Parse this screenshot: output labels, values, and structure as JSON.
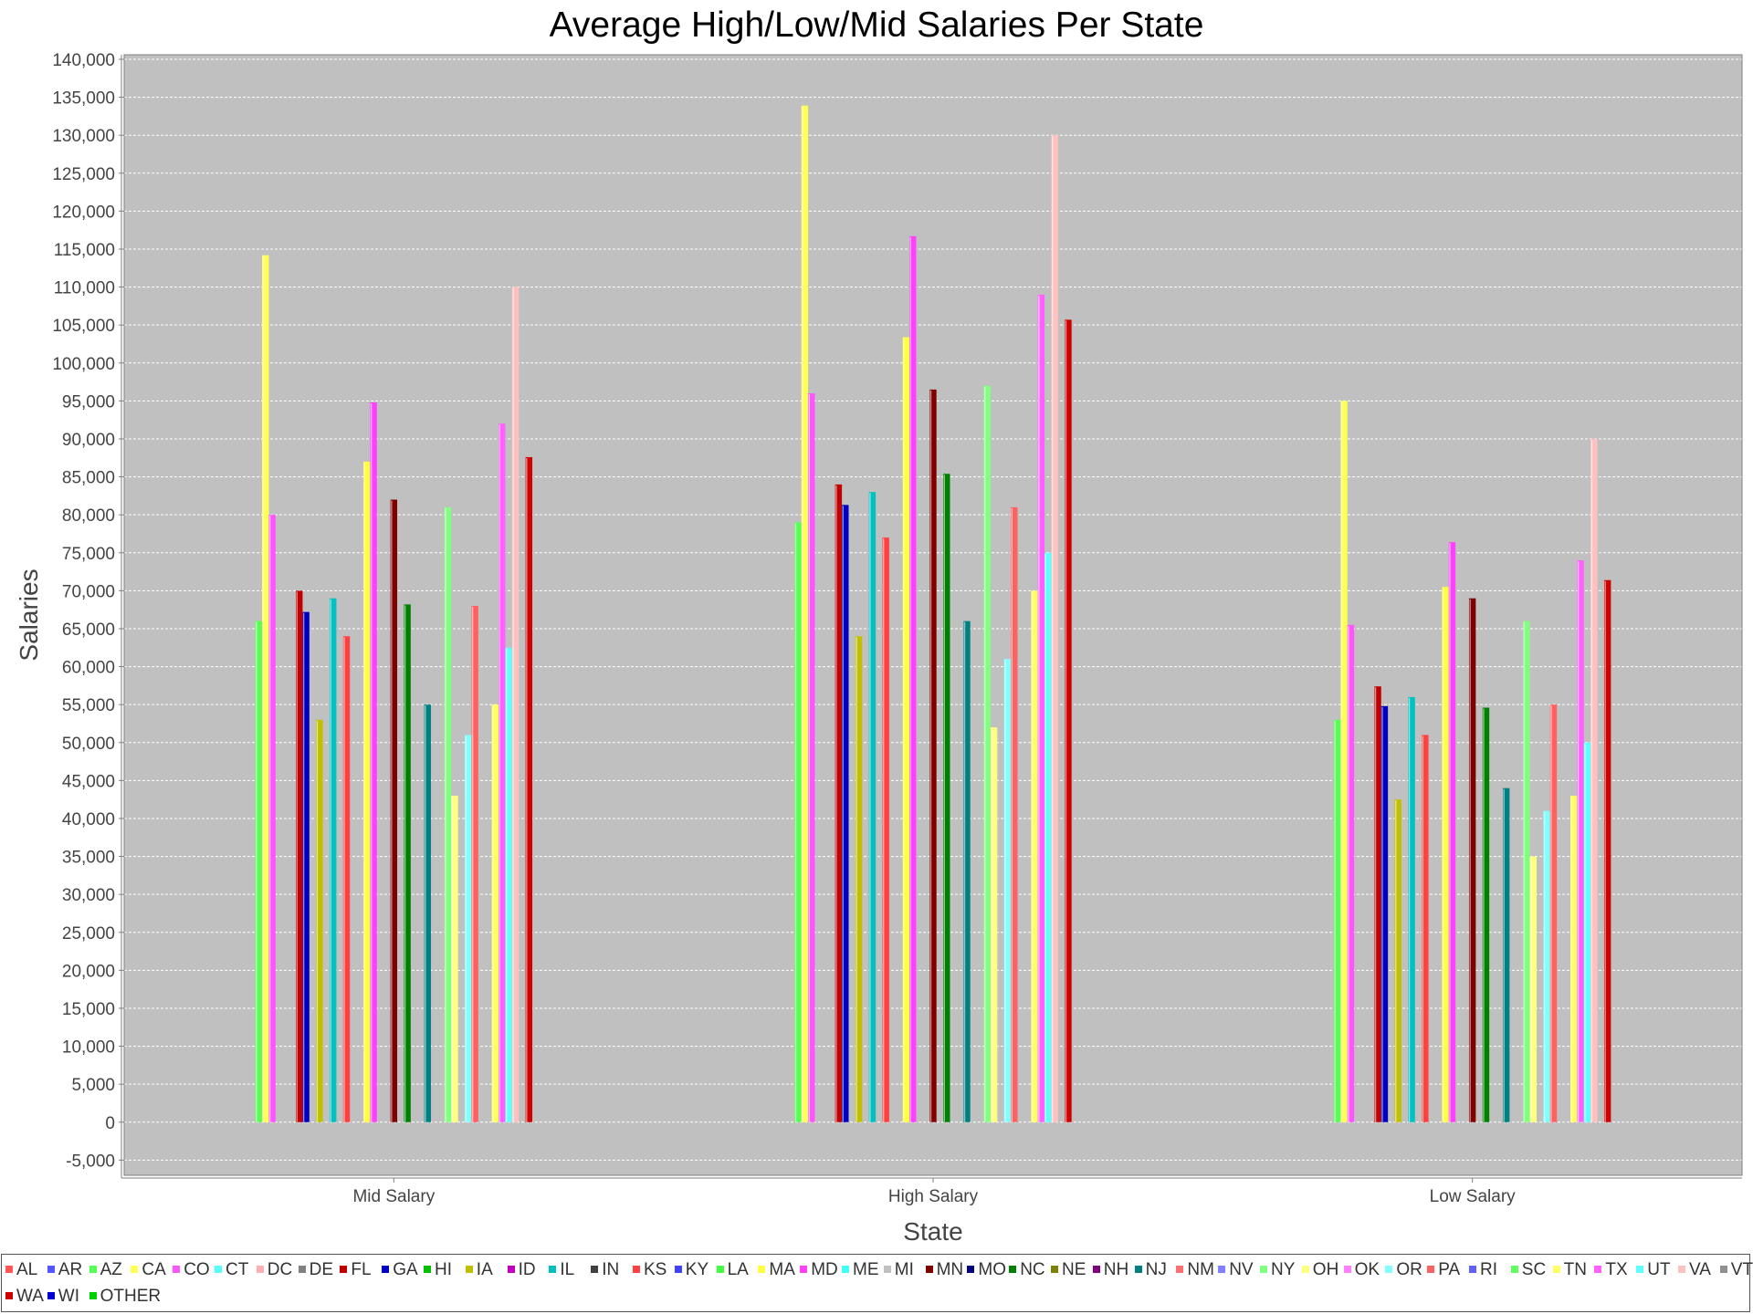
{
  "chart_data": {
    "type": "bar",
    "title": "Average High/Low/Mid Salaries Per State",
    "xlabel": "State",
    "ylabel": "Salaries",
    "ylim": [
      -7000,
      140600
    ],
    "yticks": [
      -5000,
      0,
      5000,
      10000,
      15000,
      20000,
      25000,
      30000,
      35000,
      40000,
      45000,
      50000,
      55000,
      60000,
      65000,
      70000,
      75000,
      80000,
      85000,
      90000,
      95000,
      100000,
      105000,
      110000,
      115000,
      120000,
      125000,
      130000,
      135000,
      140000
    ],
    "ytick_labels": [
      "-5,000",
      "0",
      "5,000",
      "10,000",
      "15,000",
      "20,000",
      "25,000",
      "30,000",
      "35,000",
      "40,000",
      "45,000",
      "50,000",
      "55,000",
      "60,000",
      "65,000",
      "70,000",
      "75,000",
      "80,000",
      "85,000",
      "90,000",
      "95,000",
      "100,000",
      "105,000",
      "110,000",
      "115,000",
      "120,000",
      "125,000",
      "130,000",
      "135,000",
      "140,000"
    ],
    "categories": [
      "Mid Salary",
      "High Salary",
      "Low Salary"
    ],
    "grid": true,
    "legend_position": "bottom",
    "series": [
      {
        "name": "AL",
        "color": "#ff5555",
        "values": [
          null,
          null,
          null
        ]
      },
      {
        "name": "AR",
        "color": "#5555ff",
        "values": [
          null,
          null,
          null
        ]
      },
      {
        "name": "AZ",
        "color": "#55ff55",
        "values": [
          66000,
          79000,
          53000
        ]
      },
      {
        "name": "CA",
        "color": "#ffff55",
        "values": [
          114200,
          133900,
          95000
        ]
      },
      {
        "name": "CO",
        "color": "#ff55ff",
        "values": [
          80000,
          96000,
          65500
        ]
      },
      {
        "name": "CT",
        "color": "#55ffff",
        "values": [
          null,
          null,
          null
        ]
      },
      {
        "name": "DC",
        "color": "#ffafaf",
        "values": [
          null,
          null,
          null
        ]
      },
      {
        "name": "DE",
        "color": "#808080",
        "values": [
          null,
          null,
          null
        ]
      },
      {
        "name": "FL",
        "color": "#c00000",
        "values": [
          70000,
          84000,
          57400
        ]
      },
      {
        "name": "GA",
        "color": "#0000c0",
        "values": [
          67200,
          81300,
          54800
        ]
      },
      {
        "name": "HI",
        "color": "#00c000",
        "values": [
          null,
          null,
          null
        ]
      },
      {
        "name": "IA",
        "color": "#c0c000",
        "values": [
          53000,
          64000,
          42500
        ]
      },
      {
        "name": "ID",
        "color": "#c000c0",
        "values": [
          null,
          null,
          null
        ]
      },
      {
        "name": "IL",
        "color": "#00c0c0",
        "values": [
          69000,
          83000,
          56000
        ]
      },
      {
        "name": "IN",
        "color": "#404040",
        "values": [
          null,
          null,
          null
        ]
      },
      {
        "name": "KS",
        "color": "#ff4040",
        "values": [
          64000,
          77000,
          51000
        ]
      },
      {
        "name": "KY",
        "color": "#4040ff",
        "values": [
          null,
          null,
          null
        ]
      },
      {
        "name": "LA",
        "color": "#40ff40",
        "values": [
          null,
          null,
          null
        ]
      },
      {
        "name": "MA",
        "color": "#ffff40",
        "values": [
          87000,
          103400,
          70500
        ]
      },
      {
        "name": "MD",
        "color": "#ff40ff",
        "values": [
          94800,
          116700,
          76400
        ]
      },
      {
        "name": "ME",
        "color": "#40ffff",
        "values": [
          null,
          null,
          null
        ]
      },
      {
        "name": "MI",
        "color": "#c0c0c0",
        "values": [
          null,
          null,
          null
        ]
      },
      {
        "name": "MN",
        "color": "#800000",
        "values": [
          82000,
          96500,
          69000
        ]
      },
      {
        "name": "MO",
        "color": "#000080",
        "values": [
          null,
          null,
          null
        ]
      },
      {
        "name": "NC",
        "color": "#008000",
        "values": [
          68200,
          85400,
          54600
        ]
      },
      {
        "name": "NE",
        "color": "#808000",
        "values": [
          null,
          null,
          null
        ]
      },
      {
        "name": "NH",
        "color": "#800080",
        "values": [
          null,
          null,
          null
        ]
      },
      {
        "name": "NJ",
        "color": "#008080",
        "values": [
          55000,
          66000,
          44000
        ]
      },
      {
        "name": "NM",
        "color": "#ff6f6f",
        "values": [
          null,
          null,
          null
        ]
      },
      {
        "name": "NV",
        "color": "#8080ff",
        "values": [
          null,
          null,
          null
        ]
      },
      {
        "name": "NY",
        "color": "#80ff80",
        "values": [
          81000,
          97000,
          66000
        ]
      },
      {
        "name": "OH",
        "color": "#ffff80",
        "values": [
          43000,
          52000,
          35000
        ]
      },
      {
        "name": "OK",
        "color": "#ff80ff",
        "values": [
          null,
          null,
          null
        ]
      },
      {
        "name": "OR",
        "color": "#80ffff",
        "values": [
          51000,
          61000,
          41000
        ]
      },
      {
        "name": "PA",
        "color": "#ff6060",
        "values": [
          68000,
          81000,
          55000
        ]
      },
      {
        "name": "RI",
        "color": "#6060ff",
        "values": [
          null,
          null,
          null
        ]
      },
      {
        "name": "SC",
        "color": "#60ff60",
        "values": [
          null,
          null,
          null
        ]
      },
      {
        "name": "TN",
        "color": "#ffff60",
        "values": [
          55000,
          70000,
          43000
        ]
      },
      {
        "name": "TX",
        "color": "#ff60ff",
        "values": [
          92000,
          109000,
          74000
        ]
      },
      {
        "name": "UT",
        "color": "#60ffff",
        "values": [
          62500,
          75000,
          50000
        ]
      },
      {
        "name": "VA",
        "color": "#ffc0c0",
        "values": [
          110000,
          130000,
          90000
        ]
      },
      {
        "name": "VT",
        "color": "#909090",
        "values": [
          null,
          null,
          null
        ]
      },
      {
        "name": "WA",
        "color": "#d00000",
        "values": [
          87600,
          105700,
          71400
        ]
      },
      {
        "name": "WI",
        "color": "#0000d0",
        "values": [
          null,
          null,
          null
        ]
      },
      {
        "name": "OTHER",
        "color": "#00d000",
        "values": [
          null,
          null,
          null
        ]
      }
    ]
  }
}
